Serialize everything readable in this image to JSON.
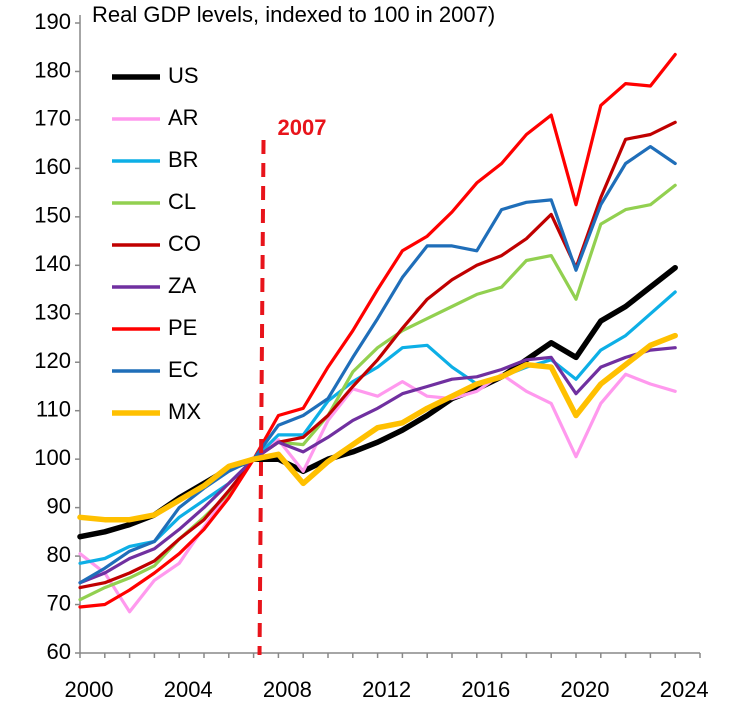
{
  "chart_data": {
    "type": "line",
    "title": "Real GDP levels, indexed to 100 in 2007)",
    "xlabel": "",
    "ylabel": "",
    "xlim": [
      2000,
      2025
    ],
    "ylim": [
      60,
      190
    ],
    "yticks": [
      60,
      70,
      80,
      90,
      100,
      110,
      120,
      130,
      140,
      150,
      160,
      170,
      180,
      190
    ],
    "xticks": [
      2000,
      2004,
      2008,
      2012,
      2016,
      2020,
      2024
    ],
    "grid": false,
    "legend": "top-left",
    "annotation": {
      "label": "2007",
      "x": 2007.4,
      "color": "#e8141b",
      "style": "dashed"
    },
    "x": [
      2000,
      2001,
      2002,
      2003,
      2004,
      2005,
      2006,
      2007,
      2008,
      2009,
      2010,
      2011,
      2012,
      2013,
      2014,
      2015,
      2016,
      2017,
      2018,
      2019,
      2020,
      2021,
      2022,
      2023,
      2024
    ],
    "series": [
      {
        "name": "US",
        "color": "#000000",
        "values": [
          84,
          85,
          86.5,
          88.5,
          92,
          95,
          98,
          100,
          100,
          97.5,
          100,
          101.5,
          103.5,
          106,
          109,
          112.5,
          114.5,
          117,
          120.5,
          124,
          121,
          128.5,
          131.5,
          135.5,
          139.5
        ]
      },
      {
        "name": "AR",
        "color": "#ff99ee",
        "values": [
          80.5,
          76.5,
          68.5,
          75,
          78.5,
          86,
          93,
          100,
          104,
          97.5,
          108,
          114.5,
          113,
          116,
          113,
          112.5,
          114,
          117.5,
          114,
          111.5,
          100.5,
          111.5,
          117.5,
          115.5,
          114
        ]
      },
      {
        "name": "BR",
        "color": "#0dafe6",
        "values": [
          78.5,
          79.5,
          82,
          83,
          88,
          91.5,
          95,
          100,
          105,
          105,
          112,
          116,
          119,
          123,
          123.5,
          119,
          115.5,
          117,
          119,
          120.5,
          116.5,
          122.5,
          125.5,
          130,
          134.5
        ]
      },
      {
        "name": "CL",
        "color": "#92d050",
        "values": [
          71,
          73.5,
          75.5,
          78,
          83.5,
          88,
          93,
          100,
          103.5,
          103,
          109,
          118,
          123,
          126.5,
          129,
          131.5,
          134,
          135.5,
          141,
          142,
          133,
          148.5,
          151.5,
          152.5,
          156.5
        ]
      },
      {
        "name": "CO",
        "color": "#c00000",
        "values": [
          73.5,
          74.5,
          76.5,
          79,
          83.5,
          87.5,
          93.5,
          100,
          103.5,
          104.5,
          109,
          115,
          120.5,
          127,
          133,
          137,
          140,
          142,
          145.5,
          150.5,
          139.5,
          154,
          166,
          167,
          169.5
        ]
      },
      {
        "name": "ZA",
        "color": "#7030a0",
        "values": [
          74.5,
          76.5,
          79.5,
          81.5,
          85.5,
          90,
          95,
          100,
          103.5,
          101.5,
          104.5,
          108,
          110.5,
          113.5,
          115,
          116.5,
          117,
          118.5,
          120.5,
          121,
          113.5,
          119,
          121,
          122.5,
          123
        ]
      },
      {
        "name": "PE",
        "color": "#ff0000",
        "values": [
          69.5,
          70,
          73,
          76.5,
          80.5,
          85.5,
          92,
          100,
          109,
          110.5,
          119,
          126.5,
          135,
          143,
          146,
          151,
          157,
          161,
          167,
          171,
          152.5,
          173,
          177.5,
          177,
          183.5
        ]
      },
      {
        "name": "EC",
        "color": "#1f6eb9",
        "values": [
          74.5,
          77.5,
          81,
          83,
          90,
          94,
          97.5,
          100,
          107,
          109,
          112.5,
          121,
          129,
          137.5,
          144,
          144,
          143,
          151.5,
          153,
          153.5,
          139,
          152.5,
          161,
          164.5,
          161
        ]
      },
      {
        "name": "MX",
        "color": "#ffc000",
        "values": [
          88,
          87.5,
          87.5,
          88.5,
          91.5,
          94.5,
          98.5,
          100,
          101,
          95,
          99.5,
          103,
          106.5,
          107.5,
          110.5,
          113,
          115.5,
          117,
          119.5,
          119,
          109,
          115.5,
          119.5,
          123.5,
          125.5
        ]
      }
    ]
  }
}
